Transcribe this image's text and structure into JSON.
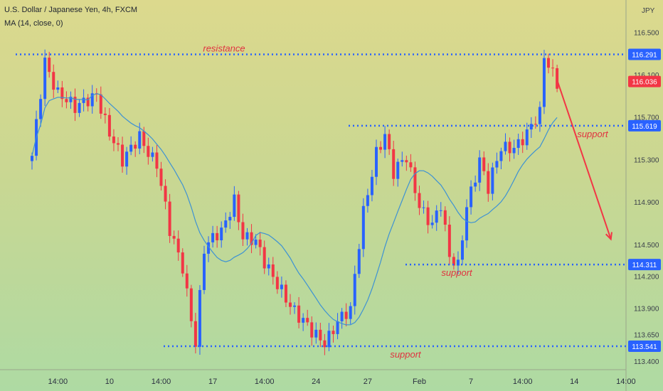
{
  "header": {
    "symbol_line": "U.S. Dollar / Japanese Yen, 4h, FXCM",
    "indicator_line": "MA (14, close, 0)",
    "currency": "JPY"
  },
  "chart_data": {
    "type": "candlestick",
    "title": "U.S. Dollar / Japanese Yen, 4h, FXCM",
    "indicator": "MA (14, close, 0)",
    "y_unit": "JPY",
    "ylim": [
      113.32,
      116.75
    ],
    "y_ticks": [
      113.4,
      113.65,
      113.9,
      114.2,
      114.5,
      114.9,
      115.3,
      115.7,
      116.1,
      116.5
    ],
    "y_tick_labels": [
      "113.400",
      "113.650",
      "113.900",
      "114.200",
      "114.500",
      "114.900",
      "115.300",
      "115.700",
      "116.100",
      "116.500"
    ],
    "x_ticks": [
      {
        "label": "14:00",
        "i": 6
      },
      {
        "label": "10",
        "i": 18
      },
      {
        "label": "14:00",
        "i": 30
      },
      {
        "label": "17",
        "i": 42
      },
      {
        "label": "14:00",
        "i": 54
      },
      {
        "label": "24",
        "i": 66
      },
      {
        "label": "27",
        "i": 78
      },
      {
        "label": "Feb",
        "i": 90
      },
      {
        "label": "7",
        "i": 102
      },
      {
        "label": "14:00",
        "i": 114
      },
      {
        "label": "14",
        "i": 126
      },
      {
        "label": "14:00",
        "i": 138
      }
    ],
    "grid": false,
    "bull_color": "#2962ff",
    "bear_color": "#f23645",
    "ma_color": "#3d92d4",
    "anchors": [
      [
        0,
        115.3
      ],
      [
        3,
        116.25
      ],
      [
        6,
        115.95
      ],
      [
        10,
        115.75
      ],
      [
        15,
        115.95
      ],
      [
        18,
        115.55
      ],
      [
        21,
        115.25
      ],
      [
        25,
        115.55
      ],
      [
        29,
        115.25
      ],
      [
        32,
        114.6
      ],
      [
        35,
        114.3
      ],
      [
        38,
        113.6
      ],
      [
        40,
        114.45
      ],
      [
        44,
        114.6
      ],
      [
        47,
        114.95
      ],
      [
        49,
        114.6
      ],
      [
        52,
        114.5
      ],
      [
        54,
        114.3
      ],
      [
        58,
        114.1
      ],
      [
        62,
        113.8
      ],
      [
        65,
        113.65
      ],
      [
        68,
        113.6
      ],
      [
        71,
        113.8
      ],
      [
        74,
        113.85
      ],
      [
        77,
        114.8
      ],
      [
        80,
        115.4
      ],
      [
        82,
        115.55
      ],
      [
        84,
        115.15
      ],
      [
        87,
        115.3
      ],
      [
        90,
        114.9
      ],
      [
        93,
        114.7
      ],
      [
        95,
        114.85
      ],
      [
        97,
        114.35
      ],
      [
        99,
        114.3
      ],
      [
        101,
        114.9
      ],
      [
        104,
        115.3
      ],
      [
        106,
        115.0
      ],
      [
        109,
        115.4
      ],
      [
        112,
        115.45
      ],
      [
        115,
        115.55
      ],
      [
        118,
        115.7
      ],
      [
        119,
        116.25
      ],
      [
        122,
        116.05
      ]
    ],
    "levels": [
      {
        "value": 116.291,
        "label": "116.291",
        "annotation": "resistance",
        "x_from": 22,
        "x_to": 880
      },
      {
        "value": 115.619,
        "label": "115.619",
        "annotation": "support",
        "x_from": 490,
        "x_to": 880
      },
      {
        "value": 114.311,
        "label": "114.311",
        "annotation": "support",
        "x_from": 570,
        "x_to": 880
      },
      {
        "value": 113.541,
        "label": "113.541",
        "annotation": "support",
        "x_from": 230,
        "x_to": 880
      }
    ],
    "last_price": {
      "value": 116.036,
      "label": "116.036"
    },
    "projection": {
      "from": [
        122,
        116.05
      ],
      "to": [
        134.5,
        114.55
      ]
    }
  }
}
